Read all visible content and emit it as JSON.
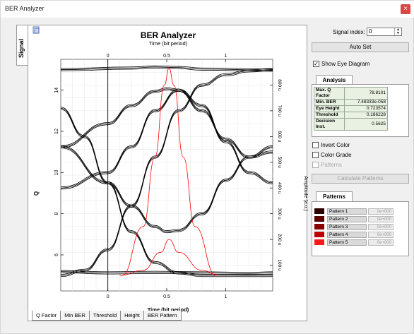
{
  "window": {
    "title": "BER Analyzer",
    "close_glyph": "×"
  },
  "side_tab": "Signal",
  "chart_data": {
    "type": "line",
    "title": "BER Analyzer",
    "top_axis_label": "Time (bit period)",
    "xlabel": "Time (bit period)",
    "ylabel": "Q",
    "right_ylabel": "Amplitude (a.u.)",
    "x_ticks": [
      "0",
      "0.5",
      "1"
    ],
    "y_left_ticks": [
      "14",
      "12",
      "10",
      "8",
      "6"
    ],
    "y_right_ticks": [
      "800 u",
      "700 u",
      "600 u",
      "500 u",
      "400 u",
      "300 u",
      "200 u",
      "100 u"
    ],
    "xlim": [
      -0.4,
      1.4
    ],
    "ylim_right": [
      0,
      900
    ],
    "grid": true,
    "series": [
      {
        "color": "#000000",
        "x": [
          -0.4,
          0.2,
          0.4,
          0.6,
          0.8,
          1.4
        ],
        "y": [
          860,
          866,
          870,
          868,
          862,
          858
        ]
      },
      {
        "color": "#000000",
        "x": [
          -0.4,
          0.0,
          0.2,
          0.4,
          0.5,
          0.6,
          0.8,
          1.0,
          1.2,
          1.4
        ],
        "y": [
          560,
          420,
          330,
          250,
          230,
          235,
          300,
          430,
          520,
          560
        ]
      },
      {
        "color": "#000000",
        "x": [
          -0.4,
          0.0,
          0.2,
          0.4,
          0.5,
          0.6,
          0.8,
          1.0,
          1.2,
          1.4
        ],
        "y": [
          560,
          650,
          720,
          775,
          785,
          780,
          700,
          590,
          520,
          540
        ]
      },
      {
        "color": "#000000",
        "x": [
          -0.4,
          -0.2,
          0.0,
          0.2,
          0.4,
          0.6,
          0.8,
          1.0,
          1.2,
          1.4
        ],
        "y": [
          710,
          600,
          420,
          230,
          110,
          70,
          60,
          60,
          60,
          60
        ]
      },
      {
        "color": "#000000",
        "x": [
          -0.4,
          -0.2,
          0.0,
          0.2,
          0.4,
          0.6,
          0.8,
          1.0,
          1.2,
          1.4
        ],
        "y": [
          60,
          80,
          160,
          330,
          520,
          700,
          800,
          840,
          855,
          860
        ]
      },
      {
        "color": "#000000",
        "x": [
          -0.4,
          0.0,
          0.2,
          0.4,
          0.6,
          0.8,
          1.0,
          1.2,
          1.4
        ],
        "y": [
          400,
          460,
          560,
          700,
          780,
          720,
          580,
          460,
          420
        ]
      },
      {
        "color": "#000000",
        "x": [
          -0.4,
          0.0,
          0.4,
          0.8,
          1.2,
          1.4
        ],
        "y": [
          75,
          70,
          72,
          70,
          68,
          70
        ]
      },
      {
        "color": "#ff0000",
        "x": [
          0.12,
          0.3,
          0.4,
          0.48,
          0.52,
          0.56,
          0.64,
          0.74,
          0.92
        ],
        "y": [
          60,
          250,
          520,
          800,
          866,
          800,
          520,
          250,
          60
        ]
      },
      {
        "color": "#ff0000",
        "x": [
          0.1,
          0.3,
          0.45,
          0.52,
          0.6,
          0.8,
          0.94
        ],
        "y": [
          60,
          80,
          150,
          200,
          150,
          80,
          60
        ]
      }
    ]
  },
  "bottom_tabs": [
    "Q Factor",
    "Min BER",
    "Threshold",
    "Height",
    "BER Pattern"
  ],
  "signal_index": {
    "label": "Signal index:",
    "value": "0"
  },
  "auto_set_button": "Auto Set",
  "show_eye_diagram": {
    "label": "Show Eye Diagram",
    "checked": true
  },
  "analysis_tab": "Analysis",
  "analysis_rows": [
    {
      "k": "Max. Q Factor",
      "v": "78.8101"
    },
    {
      "k": "Min. BER",
      "v": "7.48333e-058"
    },
    {
      "k": "Eye Height",
      "v": "0.723574"
    },
    {
      "k": "Threshold",
      "v": "0.186228"
    },
    {
      "k": "Decision Inst.",
      "v": "0.5625"
    }
  ],
  "invert_color": {
    "label": "Invert Color",
    "checked": false
  },
  "color_grade": {
    "label": "Color Grade",
    "checked": false
  },
  "patterns_check": {
    "label": "Patterns",
    "checked": false
  },
  "calculate_patterns_button": "Calculate Patterns",
  "patterns_tab": "Patterns",
  "patterns": [
    {
      "name": "Pattern 1",
      "value": "0e+000",
      "color": "#2a0000"
    },
    {
      "name": "Pattern 2",
      "value": "0e+000",
      "color": "#5a0000"
    },
    {
      "name": "Pattern 3",
      "value": "0e+000",
      "color": "#8a0000"
    },
    {
      "name": "Pattern 4",
      "value": "0e+000",
      "color": "#c00000"
    },
    {
      "name": "Pattern 5",
      "value": "0e+000",
      "color": "#ff1a1a"
    }
  ]
}
